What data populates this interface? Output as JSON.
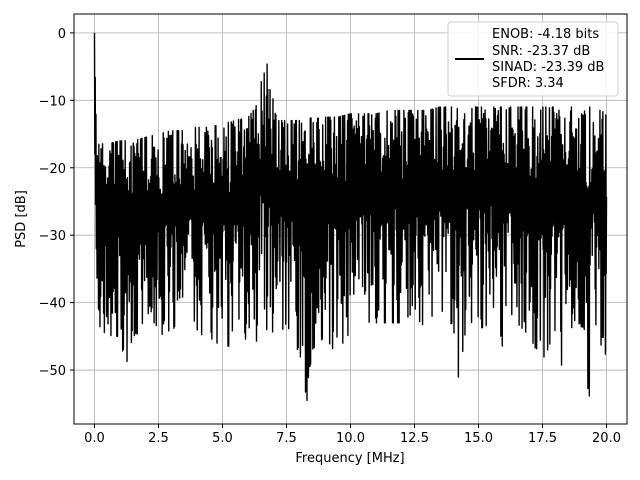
{
  "chart_data": {
    "type": "line",
    "title": "",
    "xlabel": "Frequency [MHz]",
    "ylabel": "PSD [dB]",
    "xlim": [
      -0.8,
      20.8
    ],
    "ylim": [
      -58,
      2.8
    ],
    "grid": true,
    "x_ticks": [
      0.0,
      2.5,
      5.0,
      7.5,
      10.0,
      12.5,
      15.0,
      17.5,
      20.0
    ],
    "x_tick_labels": [
      "0.0",
      "2.5",
      "5.0",
      "7.5",
      "10.0",
      "12.5",
      "15.0",
      "17.5",
      "20.0"
    ],
    "y_ticks": [
      0,
      -10,
      -20,
      -30,
      -40,
      -50
    ],
    "y_tick_labels": [
      "0",
      "−10",
      "−20",
      "−30",
      "−40",
      "−50"
    ],
    "legend": {
      "placement": "top-right",
      "lines": [
        "ENOB: -4.18 bits",
        "SNR: -23.37 dB",
        "SINAD: -23.39 dB",
        "SFDR: 3.34"
      ]
    },
    "series": [
      {
        "color": "#000000",
        "x": [
          0.0,
          0.02,
          0.05,
          0.08,
          0.12,
          0.2,
          0.5,
          1.0,
          1.1,
          1.5,
          2.0,
          2.5,
          3.0,
          3.5,
          4.0,
          4.5,
          5.0,
          5.5,
          6.0,
          6.3,
          6.5,
          6.6,
          6.7,
          6.8,
          6.9,
          7.0,
          7.2,
          7.5,
          8.0,
          8.3,
          8.5,
          9.0,
          9.5,
          10.0,
          10.5,
          11.0,
          11.5,
          12.0,
          12.5,
          13.0,
          13.5,
          14.0,
          14.2,
          14.5,
          15.0,
          15.5,
          16.0,
          16.5,
          17.0,
          17.5,
          18.0,
          18.3,
          18.5,
          19.0,
          19.3,
          19.5,
          20.0
        ],
        "upper": [
          0.0,
          -3.0,
          -8.0,
          -12.0,
          -15.0,
          -15.5,
          -16.5,
          -16.0,
          -16.0,
          -16.0,
          -15.5,
          -15.0,
          -14.5,
          -14.5,
          -14.0,
          -14.0,
          -13.5,
          -13.0,
          -12.5,
          -11.0,
          -7.0,
          -5.0,
          -4.5,
          -4.8,
          -5.5,
          -11.5,
          -13.0,
          -13.0,
          -13.0,
          -13.0,
          -12.5,
          -12.5,
          -12.5,
          -12.0,
          -12.0,
          -12.0,
          -11.5,
          -11.5,
          -11.5,
          -11.5,
          -11.0,
          -11.0,
          -11.0,
          -11.0,
          -11.0,
          -11.0,
          -11.0,
          -11.0,
          -11.0,
          -11.0,
          -11.0,
          -11.0,
          -11.0,
          -11.0,
          -11.0,
          -11.0,
          -12.0
        ],
        "lower": [
          -8.0,
          -22.0,
          -35.0,
          -40.0,
          -43.0,
          -43.5,
          -45.0,
          -45.0,
          -51.5,
          -45.0,
          -44.0,
          -45.0,
          -44.0,
          -43.0,
          -44.0,
          -46.0,
          -46.0,
          -47.0,
          -45.0,
          -46.0,
          -44.0,
          -44.0,
          -44.0,
          -44.0,
          -44.0,
          -48.0,
          -45.0,
          -43.0,
          -48.0,
          -54.5,
          -47.0,
          -45.0,
          -48.0,
          -45.0,
          -44.0,
          -43.0,
          -43.0,
          -43.0,
          -42.0,
          -44.0,
          -44.0,
          -43.0,
          -52.5,
          -44.0,
          -44.0,
          -43.0,
          -47.0,
          -43.0,
          -45.0,
          -49.0,
          -44.0,
          -50.5,
          -44.0,
          -43.0,
          -55.5,
          -44.0,
          -48.0
        ]
      }
    ]
  }
}
